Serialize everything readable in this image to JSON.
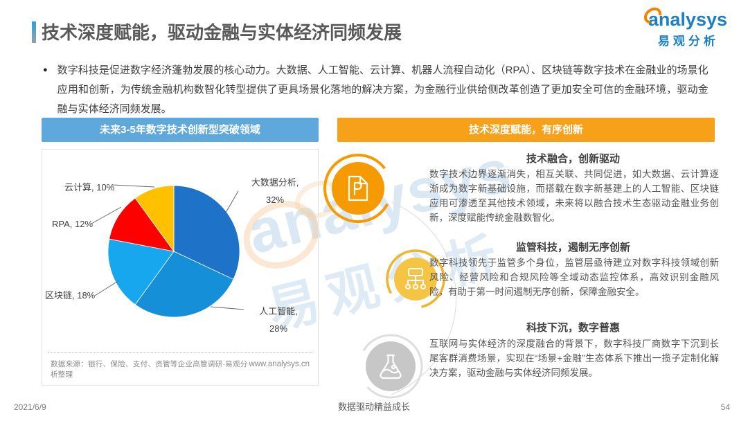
{
  "page": {
    "title": "技术深度赋能，驱动金融与实体经济同频发展",
    "intro": "数字科技是促进数字经济蓬勃发展的核心动力。大数据、人工智能、云计算、机器人流程自动化（RPA）、区块链等数字技术在金融业的场景化应用和创新，为传统金融机构数智化转型提供了更具场景化落地的解决方案，为金融行业供给侧改革创造了更加安全可信的金融环境，驱动金融与实体经济同频发展。",
    "footer": {
      "date": "2021/6/9",
      "slogan": "数据驱动精益成长",
      "page_number": "54"
    }
  },
  "logo": {
    "brand": "analysys",
    "brand_cn": "易观分析"
  },
  "watermark": {
    "line1": "analysys",
    "line2": "易观分析"
  },
  "left_panel": {
    "header": "未来3-5年数字技术创新型突破领域",
    "header_color": "#5FA8DC",
    "source": "数据来源：银行、保险、支付、资管等企业高管调研·易观分析整理",
    "website": "www.analysys.cn"
  },
  "right_panel": {
    "header": "技术深度赋能，有序创新",
    "header_color": "#F7A11B",
    "sections": [
      {
        "icon": "document-p-icon",
        "title": "技术融合，创新驱动",
        "body": "数字技术边界逐渐消失，相互关联、共同促进，如大数据、云计算逐渐成为数字新基础设施，而搭载在数字新基建上的人工智能、区块链应用可渗透至其他技术领域，未来将以融合技术生态驱动金融业务创新，深度赋能传统金融数智化。"
      },
      {
        "icon": "org-chart-icon",
        "title": "监管科技，遏制无序创新",
        "body": "数字科技领先于监管多个身位，监管层亟待建立对数字科技领域创新风险、经营风险和合规风险等全域动态监控体系，高效识别金融风险，有助于第一时间遏制无序创新，保障金融安全。"
      },
      {
        "icon": "flask-icon",
        "title": "科技下沉，数字普惠",
        "body": "互联网与实体经济的深度融合的背景下，数字科技厂商数字下沉到长尾客群消费场景，实现在“场景+金融”生态体系下推出一揽子定制化解决方案，驱动金融与实体经济同频发展。"
      }
    ]
  },
  "chart_data": {
    "type": "pie",
    "title": "未来3-5年数字技术创新型突破领域",
    "categories": [
      "大数据分析",
      "人工智能",
      "区块链",
      "RPA",
      "云计算"
    ],
    "values": [
      32,
      28,
      18,
      12,
      10
    ],
    "unit": "%",
    "colors": [
      "#1E73C8",
      "#148FD8",
      "#17A7EF",
      "#FE0000",
      "#FFC000"
    ],
    "start_angle_deg": 0,
    "direction": "clockwise",
    "legend_position": "callout-labels"
  }
}
